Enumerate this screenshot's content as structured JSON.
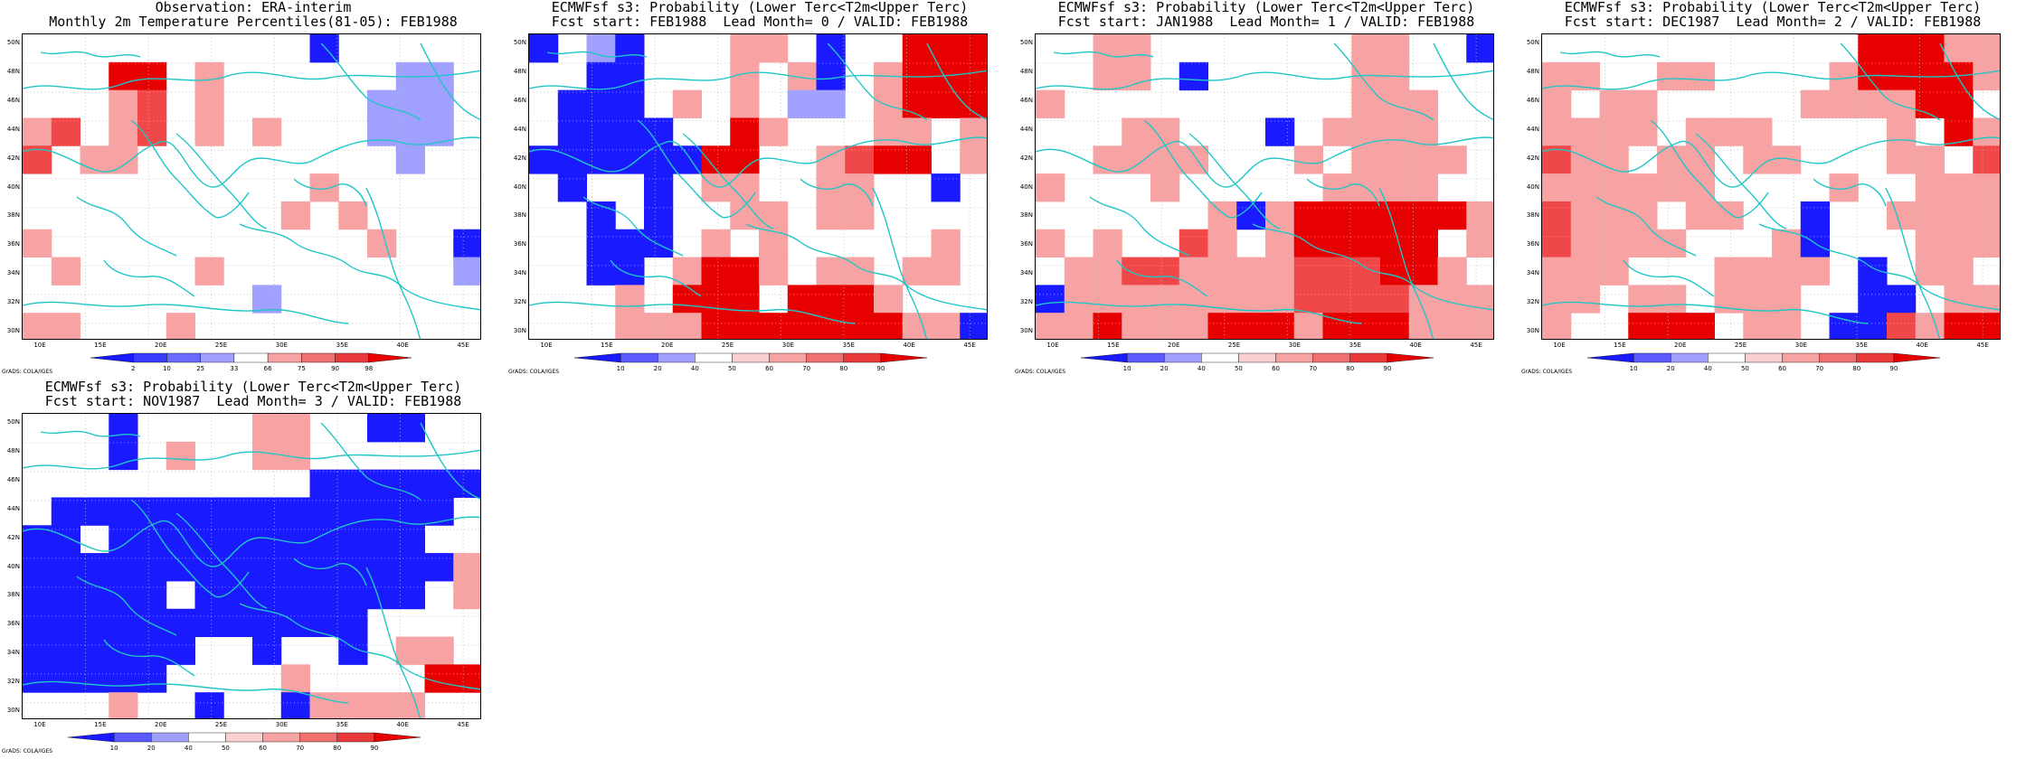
{
  "panels": [
    {
      "title_line1": "Observation: ERA-interim",
      "title_line2": "Monthly 2m Temperature Percentiles(81-05): FEB1988",
      "colorbar": {
        "type": "obs",
        "labels": [
          "2",
          "10",
          "25",
          "33",
          "66",
          "75",
          "90",
          "98"
        ]
      },
      "grid": [
        "..........B.....",
        "...RR.p......bb.",
        "...pr.p.....bbb.",
        "pr.pr.p.p...bbb.",
        "r.pp.........b..",
        "..........p.....",
        ".........p.p....",
        "p...........p..B",
        ".p....p........b",
        "........b.......",
        "pp...p.........."
      ]
    },
    {
      "title_line1": "ECMWFsf s3: Probability (Lower Terc<T2m<Upper Terc)",
      "title_line2": "Fcst start: FEB1988  Lead Month= 0 / VALID: FEB1988",
      "colorbar": {
        "type": "prob",
        "labels": [
          "10",
          "20",
          "40",
          "50",
          "60",
          "70",
          "80",
          "90"
        ]
      },
      "grid": [
        "B.bB...pp.B..RRR",
        "..BB...p.pB.pRRR",
        ".BBB.p.p.bb.pRRR",
        ".BBBB..Rp...pp.p",
        "BBBBBBRR..prRR.p",
        ".B..B.pp..pp..B.",
        "..B.B..pp.pp....",
        "..BBB.p.p.....p.",
        "..BB.pRRp.pp.pp.",
        "...p.RRR.RRRp...",
        "...pppRRRRRRRppB"
      ]
    },
    {
      "title_line1": "ECMWFsf s3: Probability (Lower Terc<T2m<Upper Terc)",
      "title_line2": "Fcst start: JAN1988  Lead Month= 1 / VALID: FEB1988",
      "colorbar": {
        "type": "prob",
        "labels": [
          "10",
          "20",
          "40",
          "50",
          "60",
          "70",
          "80",
          "90"
        ]
      },
      "grid": [
        "..pp.......pp..B",
        "..pp.B.....pp...",
        "p..........ppp..",
        "...pp...B.pppp..",
        "..pppp...p.pppp.",
        "p...p.....pppp..",
        "......pBpRRRRRRp",
        "p.p..rp.pRRRRR.p",
        ".pprrpppprrrRRp.",
        "Bpppppppprrrrppp",
        "ppRpppRRRpRRRppp"
      ]
    },
    {
      "title_line1": "ECMWFsf s3: Probability (Lower Terc<T2m<Upper Terc)",
      "title_line2": "Fcst start: DEC1987  Lead Month= 2 / VALID: FEB1988",
      "colorbar": {
        "type": "prob",
        "labels": [
          "10",
          "20",
          "40",
          "50",
          "60",
          "70",
          "80",
          "90"
        ]
      },
      "grid": [
        "...........RRRpp",
        "pp..pp....pRRRRp",
        "p.pp.....ppppRR.",
        "pppp.ppp....p.Rp",
        "rpp.pp.pp...pp.r",
        "pppppp....p..ppp",
        "rppp.pp..B..pppp",
        "rpppp...pB...ppp",
        "ppp...pppp.B.pp.",
        "pp.pp.ppp..BB.pp",
        "p..RRR.pp.BBrpRR"
      ]
    },
    {
      "title_line1": "ECMWFsf s3: Probability (Lower Terc<T2m<Upper Terc)",
      "title_line2": "Fcst start: NOV1987  Lead Month= 3 / VALID: FEB1988",
      "colorbar": {
        "type": "prob",
        "labels": [
          "10",
          "20",
          "40",
          "50",
          "60",
          "70",
          "80",
          "90"
        ]
      },
      "grid": [
        "...B....pp..BB..",
        "...B.p..pp......",
        "..........BBBBBB",
        ".BBBBBBBBBBBBBB.",
        "BB.BBBBBBBBBBB..",
        "BBBBBBBBBBBBBBBp",
        "BBBBB.BBBBBBBB.p",
        "BBBBBBBBBBBB....",
        "BBBBBB..B..B.pp.",
        "BBBBB....p....RR",
        "...p..B..Bpppp.."
      ]
    }
  ],
  "lat_labels": [
    "50N",
    "48N",
    "46N",
    "44N",
    "42N",
    "40N",
    "38N",
    "36N",
    "34N",
    "32N",
    "30N"
  ],
  "lon_labels": [
    "10E",
    "15E",
    "20E",
    "25E",
    "30E",
    "35E",
    "40E",
    "45E"
  ],
  "colors": {
    "R": "#e60000",
    "r": "#f04848",
    "p": "#f7a3a3",
    "B": "#1a1aff",
    "b": "#a0a0ff",
    "coast": "#1fc6c6"
  },
  "grads_credit": "GrADS: COLA/IGES"
}
